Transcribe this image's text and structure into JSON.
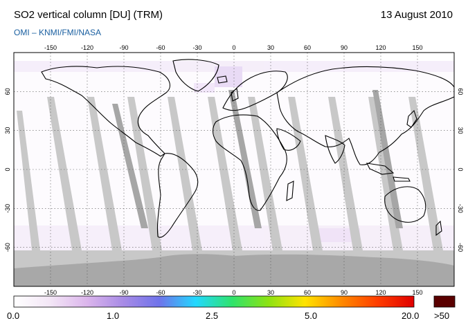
{
  "header": {
    "title": "SO2 vertical column [DU] (TRM)",
    "date": "13 August 2010",
    "subtitle": "OMI  –  KNMI/FMI/NASA"
  },
  "map": {
    "projection": "equirectangular",
    "lon_range": [
      -180,
      180
    ],
    "lat_range": [
      -90,
      90
    ],
    "lon_ticks": [
      "-150",
      "-120",
      "-90",
      "-60",
      "-30",
      "0",
      "30",
      "60",
      "90",
      "120",
      "150"
    ],
    "lat_ticks": [
      "60",
      "30",
      "0",
      "-30",
      "-60"
    ],
    "grid": "dotted",
    "no_data_color": "#c8c8c8",
    "swath_dark_color": "#a6a6a6"
  },
  "colorbar": {
    "labels": [
      "0.0",
      "1.0",
      "2.5",
      "5.0",
      "20.0"
    ],
    "overflow_label": ">50",
    "overflow_color": "#5a0000",
    "colors": [
      "#ffffff",
      "#f3e6f6",
      "#dcb6ec",
      "#a88be6",
      "#6f73ea",
      "#22d8ff",
      "#2fe36c",
      "#8de312",
      "#ffe300",
      "#ff8a00",
      "#ff3d00",
      "#e00000"
    ]
  }
}
